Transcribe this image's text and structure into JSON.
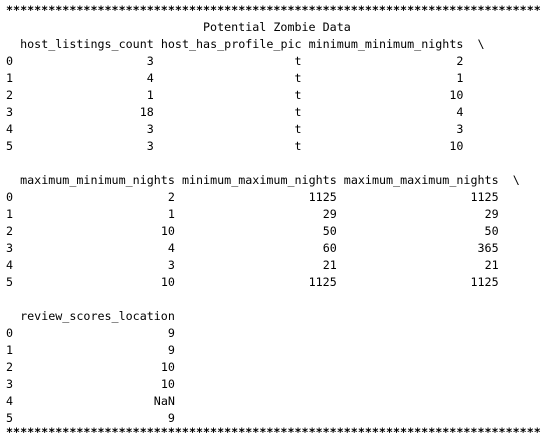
{
  "console": {
    "border_line": "*****************************************************************************",
    "title": "Potential Zombie Data",
    "index": [
      "0",
      "1",
      "2",
      "3",
      "4",
      "5"
    ],
    "continuation_marker": "\\",
    "blocks": [
      {
        "headers": [
          "host_listings_count",
          "host_has_profile_pic",
          "minimum_minimum_nights"
        ],
        "rows": [
          [
            "3",
            "t",
            "2"
          ],
          [
            "4",
            "t",
            "1"
          ],
          [
            "1",
            "t",
            "10"
          ],
          [
            "18",
            "t",
            "4"
          ],
          [
            "3",
            "t",
            "3"
          ],
          [
            "3",
            "t",
            "10"
          ]
        ]
      },
      {
        "headers": [
          "maximum_minimum_nights",
          "minimum_maximum_nights",
          "maximum_maximum_nights"
        ],
        "rows": [
          [
            "2",
            "1125",
            "1125"
          ],
          [
            "1",
            "29",
            "29"
          ],
          [
            "10",
            "50",
            "50"
          ],
          [
            "4",
            "60",
            "365"
          ],
          [
            "3",
            "21",
            "21"
          ],
          [
            "10",
            "1125",
            "1125"
          ]
        ]
      },
      {
        "headers": [
          "review_scores_location"
        ],
        "rows": [
          [
            "9"
          ],
          [
            "9"
          ],
          [
            "10"
          ],
          [
            "10"
          ],
          [
            "NaN"
          ],
          [
            "9"
          ]
        ]
      }
    ]
  }
}
